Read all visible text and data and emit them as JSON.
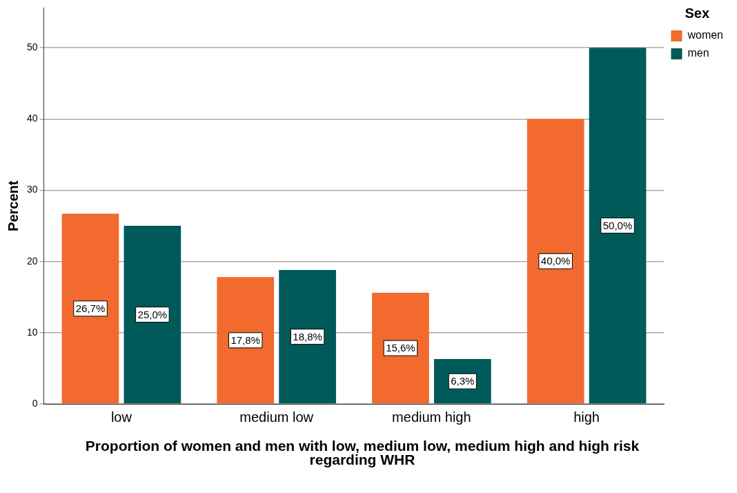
{
  "chart_data": {
    "type": "bar",
    "xlabel": "Proportion of women and men with low, medium low, medium high and high risk regarding WHR",
    "ylabel": "Percent",
    "legend_title": "Sex",
    "categories": [
      "low",
      "medium low",
      "medium high",
      "high"
    ],
    "series": [
      {
        "name": "women",
        "color": "#f26a2e",
        "values": [
          26.7,
          17.8,
          15.6,
          40.0
        ],
        "value_labels": [
          "26,7%",
          "17,8%",
          "15,6%",
          "40,0%"
        ]
      },
      {
        "name": "men",
        "color": "#005a5a",
        "values": [
          25.0,
          18.8,
          6.3,
          50.0
        ],
        "value_labels": [
          "25,0%",
          "18,8%",
          "6,3%",
          "50,0%"
        ]
      }
    ],
    "ylim": [
      0,
      55.6
    ],
    "yticks": [
      0,
      10,
      20,
      30,
      40,
      50
    ],
    "grid": "y",
    "legend": "top right"
  }
}
